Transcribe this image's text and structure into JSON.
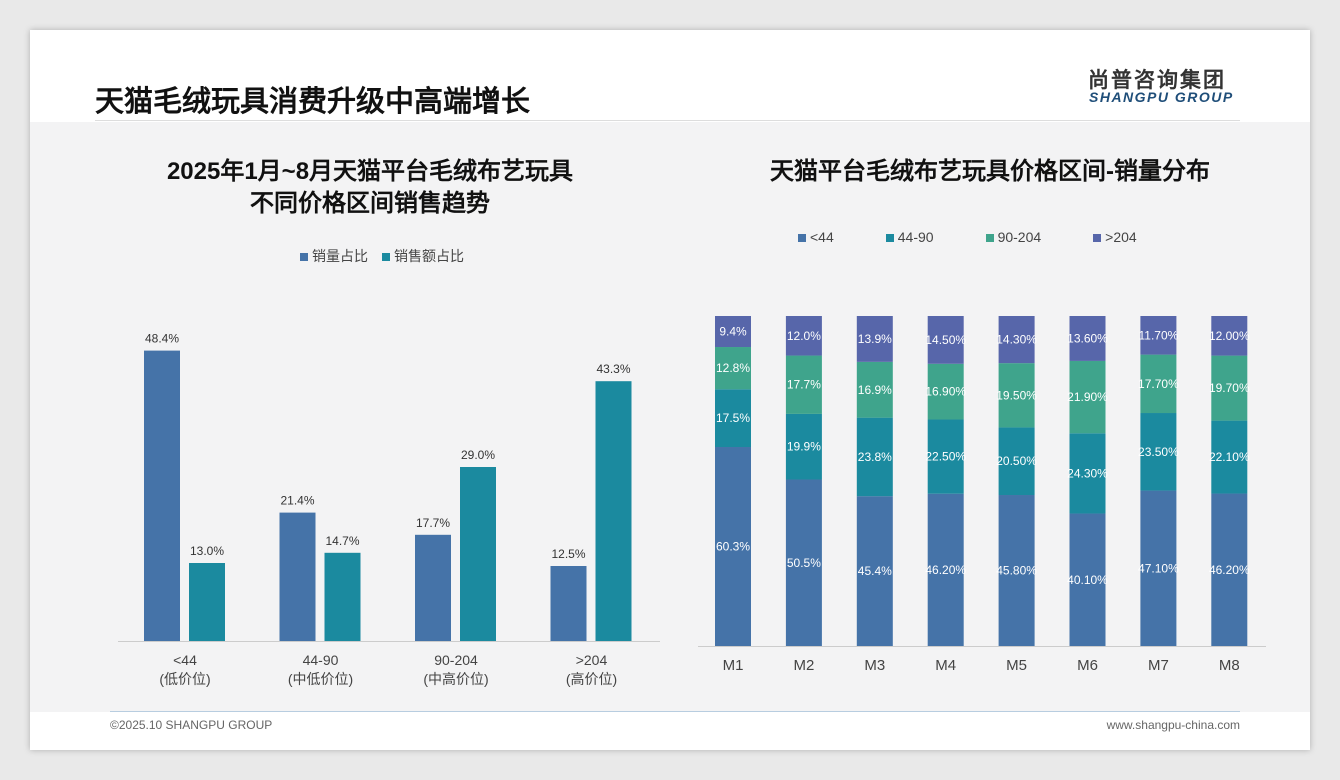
{
  "header": {
    "title": "天猫毛绒玩具消费升级中高端增长",
    "logo_cn": "尚普咨询集团",
    "logo_en": "SHANGPU GROUP"
  },
  "footer": {
    "copyright": "©2025.10 SHANGPU GROUP",
    "url": "www.shangpu-china.com"
  },
  "colors": {
    "blue": "#4573a8",
    "teal": "#1b8a9f",
    "green": "#3fa48c",
    "purple": "#5766aa"
  },
  "chart_data": [
    {
      "type": "bar",
      "title_line1": "2025年1月~8月天猫平台毛绒布艺玩具",
      "title_line2": "不同价格区间销售趋势",
      "categories": [
        "<44",
        "44-90",
        "90-204",
        ">204"
      ],
      "subcategories": [
        "(低价位)",
        "(中低价位)",
        "(中高价位)",
        "(高价位)"
      ],
      "series": [
        {
          "name": "销量占比",
          "values": [
            48.4,
            21.4,
            17.7,
            12.5
          ],
          "labels": [
            "48.4%",
            "21.4%",
            "17.7%",
            "12.5%"
          ]
        },
        {
          "name": "销售额占比",
          "values": [
            13.0,
            14.7,
            29.0,
            43.3
          ],
          "labels": [
            "13.0%",
            "14.7%",
            "29.0%",
            "43.3%"
          ]
        }
      ],
      "ylim": [
        0,
        50
      ]
    },
    {
      "type": "bar",
      "stacked": true,
      "title": "天猫平台毛绒布艺玩具价格区间-销量分布",
      "categories": [
        "M1",
        "M2",
        "M3",
        "M4",
        "M5",
        "M6",
        "M7",
        "M8"
      ],
      "series": [
        {
          "name": "<44",
          "values": [
            60.3,
            50.5,
            45.4,
            46.2,
            45.8,
            40.1,
            47.1,
            46.2
          ],
          "labels": [
            "60.3%",
            "50.5%",
            "45.4%",
            "46.20%",
            "45.80%",
            "40.10%",
            "47.10%",
            "46.20%"
          ]
        },
        {
          "name": "44-90",
          "values": [
            17.5,
            19.9,
            23.8,
            22.5,
            20.5,
            24.3,
            23.5,
            22.1
          ],
          "labels": [
            "17.5%",
            "19.9%",
            "23.8%",
            "22.50%",
            "20.50%",
            "24.30%",
            "23.50%",
            "22.10%"
          ]
        },
        {
          "name": "90-204",
          "values": [
            12.8,
            17.7,
            16.9,
            16.9,
            19.5,
            21.9,
            17.7,
            19.7
          ],
          "labels": [
            "12.8%",
            "17.7%",
            "16.9%",
            "16.90%",
            "19.50%",
            "21.90%",
            "17.70%",
            "19.70%"
          ]
        },
        {
          "name": ">204",
          "values": [
            9.4,
            12.0,
            13.9,
            14.5,
            14.3,
            13.6,
            11.7,
            12.0
          ],
          "labels": [
            "9.4%",
            "12.0%",
            "13.9%",
            "14.50%",
            "14.30%",
            "13.60%",
            "11.70%",
            "12.00%"
          ]
        }
      ],
      "ylim": [
        0,
        100
      ]
    }
  ]
}
